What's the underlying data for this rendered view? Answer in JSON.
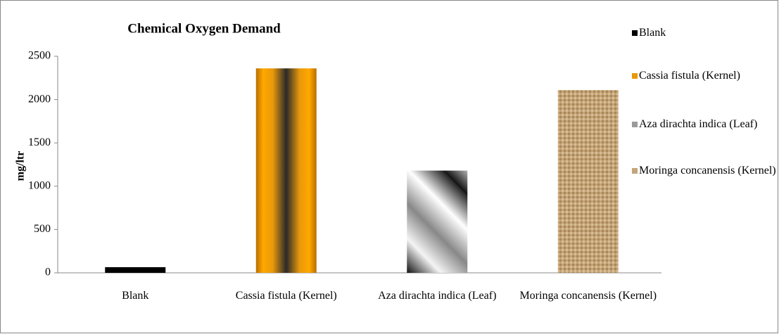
{
  "chart_data": {
    "type": "bar",
    "title": "Chemical Oxygen Demand",
    "ylabel": "mg/ltr",
    "categories": [
      "Blank",
      "Cassia fistula (Kernel)",
      "Aza dirachta indica (Leaf)",
      "Moringa concanensis (Kernel)"
    ],
    "values": [
      65,
      2360,
      1180,
      2110
    ],
    "colors": [
      "#000000",
      "#e8980a",
      "#9a9a9a",
      "#c4a47a"
    ],
    "ylim": [
      0,
      2500
    ],
    "yticks": [
      0,
      500,
      1000,
      1500,
      2000,
      2500
    ],
    "grid": false,
    "legend": "right"
  }
}
